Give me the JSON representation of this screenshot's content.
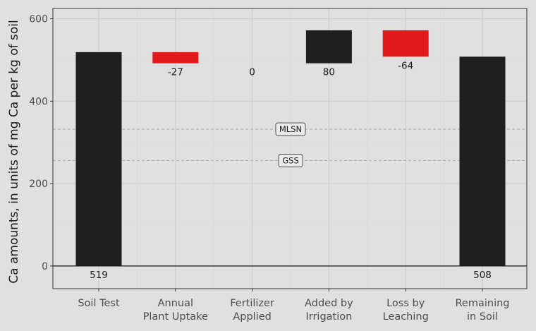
{
  "chart_data": {
    "type": "bar",
    "subtype": "waterfall",
    "title": "",
    "xlabel": "",
    "ylabel": "Ca amounts, in units of mg Ca per kg of soil",
    "ylim": [
      -55,
      625
    ],
    "yticks": [
      0,
      200,
      400,
      600
    ],
    "grid": true,
    "legend": "none",
    "categories": [
      [
        "Soil Test"
      ],
      [
        "Annual",
        "Plant Uptake"
      ],
      [
        "Fertilizer",
        "Applied"
      ],
      [
        "Added by",
        "Irrigation"
      ],
      [
        "Loss by",
        "Leaching"
      ],
      [
        "Remaining",
        "in Soil"
      ]
    ],
    "bars": [
      {
        "kind": "total",
        "start": 0,
        "end": 519,
        "label": "519"
      },
      {
        "kind": "change",
        "start": 519,
        "end": 492,
        "label": "-27"
      },
      {
        "kind": "change",
        "start": 492,
        "end": 492,
        "label": "0"
      },
      {
        "kind": "change",
        "start": 492,
        "end": 572,
        "label": "80"
      },
      {
        "kind": "change",
        "start": 572,
        "end": 508,
        "label": "-64"
      },
      {
        "kind": "total",
        "start": 0,
        "end": 508,
        "label": "508"
      }
    ],
    "reference_lines": [
      {
        "label": "MLSN",
        "value": 332
      },
      {
        "label": "GSS",
        "value": 256
      }
    ],
    "colors": {
      "increase": "#1f1f1f",
      "decrease": "#e31a1c",
      "total": "#1f1f1f",
      "panel": "#e0e0e0",
      "grid_major": "#cccccc",
      "grid_minor": "#d6d6d6",
      "ref_line": "#a8a8a8"
    }
  }
}
